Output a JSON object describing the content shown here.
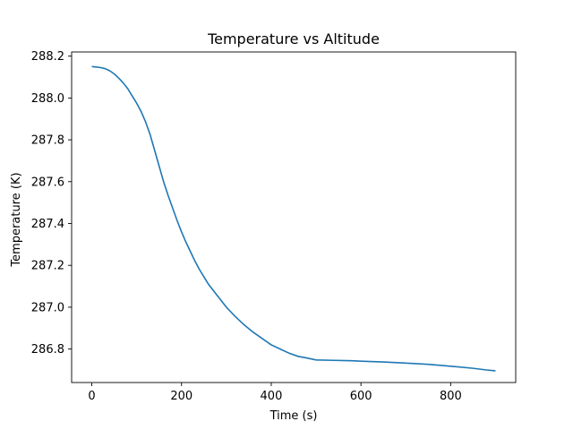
{
  "chart_data": {
    "type": "line",
    "title": "Temperature vs Altitude",
    "xlabel": "Time (s)",
    "ylabel": "Temperature (K)",
    "xlim": [
      -45,
      945
    ],
    "ylim": [
      286.64,
      288.22
    ],
    "x_ticks": [
      0,
      200,
      400,
      600,
      800
    ],
    "y_ticks": [
      286.8,
      287.0,
      287.2,
      287.4,
      287.6,
      287.8,
      288.0,
      288.2
    ],
    "grid": false,
    "series": [
      {
        "color": "#1f77b4",
        "x": [
          0,
          10,
          20,
          30,
          40,
          50,
          60,
          70,
          80,
          90,
          100,
          110,
          120,
          130,
          140,
          150,
          160,
          170,
          180,
          190,
          200,
          210,
          220,
          230,
          240,
          250,
          260,
          280,
          300,
          320,
          340,
          360,
          380,
          400,
          420,
          440,
          460,
          480,
          500,
          540,
          580,
          600,
          650,
          700,
          750,
          800,
          850,
          880,
          900
        ],
        "y": [
          288.15,
          288.148,
          288.145,
          288.14,
          288.13,
          288.115,
          288.095,
          288.072,
          288.045,
          288.01,
          287.975,
          287.935,
          287.885,
          287.825,
          287.75,
          287.675,
          287.6,
          287.535,
          287.475,
          287.415,
          287.36,
          287.31,
          287.265,
          287.22,
          287.18,
          287.145,
          287.11,
          287.055,
          287.0,
          286.955,
          286.915,
          286.88,
          286.85,
          286.82,
          286.8,
          286.78,
          286.765,
          286.757,
          286.748,
          286.746,
          286.744,
          286.742,
          286.738,
          286.733,
          286.727,
          286.718,
          286.708,
          286.7,
          286.696
        ]
      }
    ]
  }
}
